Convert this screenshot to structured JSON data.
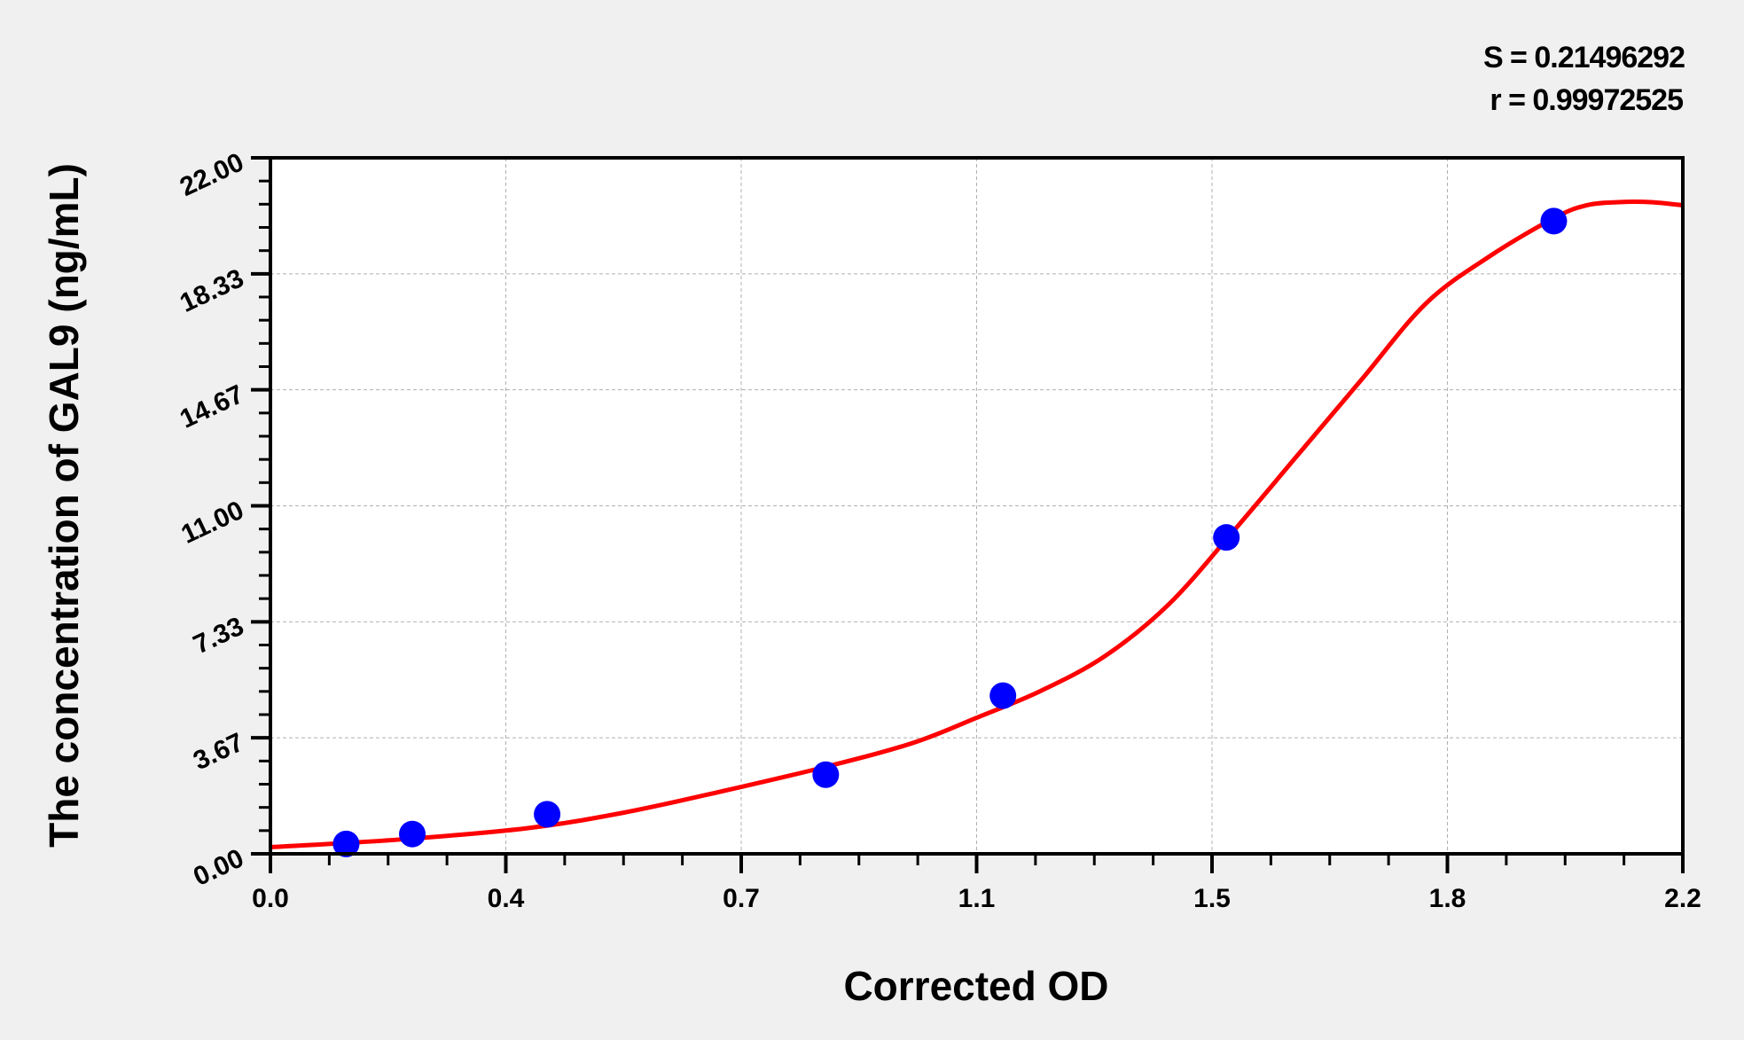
{
  "chart_data": {
    "type": "scatter",
    "title": "",
    "xlabel": "Corrected OD",
    "ylabel": "The concentration of GAL9 (ng/mL)",
    "xlim": [
      0,
      2.2
    ],
    "ylim": [
      0,
      22
    ],
    "x_ticks": [
      "0.0",
      "0.4",
      "0.7",
      "1.1",
      "1.5",
      "1.8",
      "2.2"
    ],
    "y_ticks": [
      "0.00",
      "3.67",
      "7.33",
      "11.00",
      "14.67",
      "18.33",
      "22.00"
    ],
    "grid": true,
    "stats": {
      "S": "S = 0.21496292",
      "r": "r = 0.99972525"
    },
    "points": {
      "x": [
        0.118,
        0.221,
        0.431,
        0.865,
        1.141,
        1.489,
        1.999
      ],
      "y": [
        0.312,
        0.625,
        1.25,
        2.5,
        5,
        10,
        20
      ],
      "color": "#0000ff"
    },
    "fit_curve": {
      "x": [
        0,
        0.2,
        0.4,
        0.55,
        0.7,
        0.865,
        1.0,
        1.1,
        1.2,
        1.3,
        1.4,
        1.5,
        1.6,
        1.7,
        1.8,
        1.9,
        2.0,
        2.05,
        2.1,
        2.15,
        2.2
      ],
      "y": [
        0.21,
        0.45,
        0.81,
        1.3,
        1.96,
        2.75,
        3.5,
        4.3,
        5.15,
        6.25,
        7.9,
        10.2,
        12.6,
        15.0,
        17.4,
        18.9,
        20.1,
        20.5,
        20.6,
        20.6,
        20.5
      ],
      "color": "#ff0000"
    }
  }
}
